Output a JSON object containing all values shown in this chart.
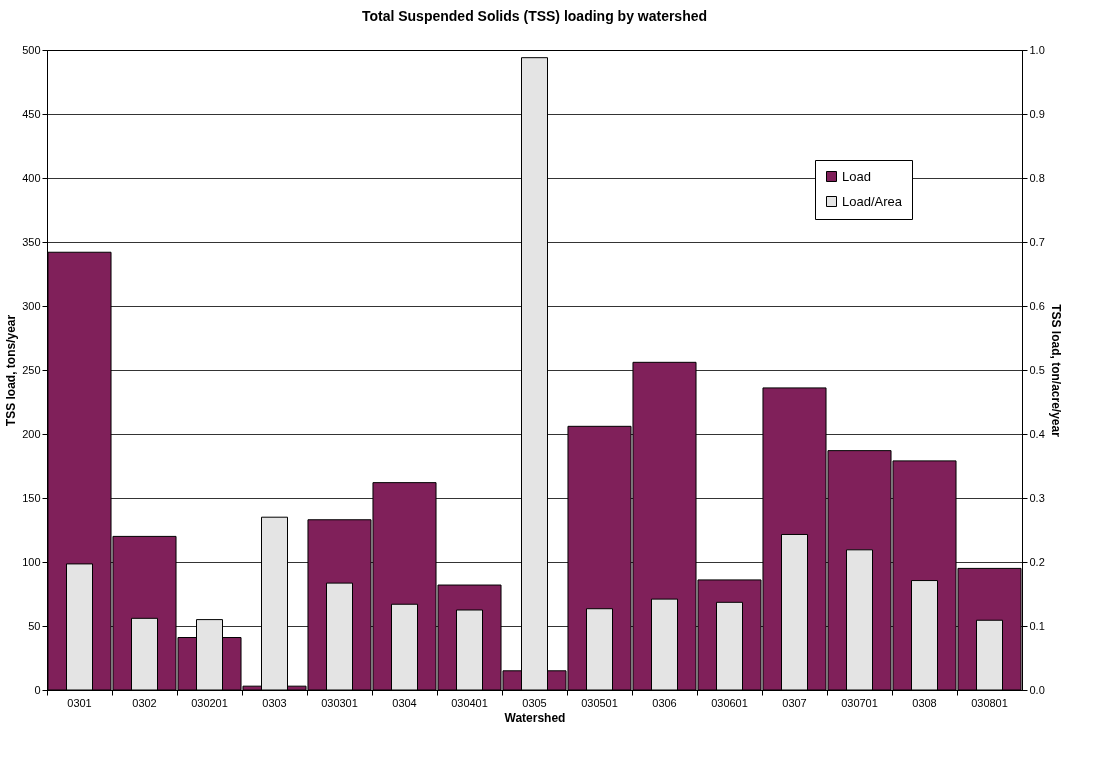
{
  "chart_data": {
    "type": "bar",
    "title": "Total Suspended Solids (TSS) loading by watershed",
    "xlabel": "Watershed",
    "ylabel": "TSS load, tons/year",
    "y2label": "TSS load, ton/acre/year",
    "categories": [
      "0301",
      "0302",
      "030201",
      "0303",
      "030301",
      "0304",
      "030401",
      "0305",
      "030501",
      "0306",
      "030601",
      "0307",
      "030701",
      "0308",
      "030801"
    ],
    "series": [
      {
        "name": "Load",
        "color": "#80205a",
        "values": [
          342,
          120,
          41,
          3,
          133,
          162,
          82,
          15,
          206,
          256,
          86,
          236,
          187,
          179,
          95
        ]
      },
      {
        "name": "Load/Area",
        "color": "#e4e4e4",
        "axis": "y2",
        "values": [
          0.197,
          0.112,
          0.11,
          0.27,
          0.167,
          0.134,
          0.125,
          0.988,
          0.127,
          0.142,
          0.137,
          0.243,
          0.219,
          0.171,
          0.109
        ]
      }
    ],
    "ylim": [
      0,
      500
    ],
    "yticks": [
      0,
      50,
      100,
      150,
      200,
      250,
      300,
      350,
      400,
      450,
      500
    ],
    "y2lim": [
      0,
      1
    ],
    "y2ticks": [
      {
        "value": 0,
        "label": "0.0"
      },
      {
        "value": 0.1,
        "label": "0.1"
      },
      {
        "value": 0.2,
        "label": "0.2"
      },
      {
        "value": 0.3,
        "label": "0.3"
      },
      {
        "value": 0.4,
        "label": "0.4"
      },
      {
        "value": 0.5,
        "label": "0.5"
      },
      {
        "value": 0.6,
        "label": "0.6"
      },
      {
        "value": 0.7,
        "label": "0.7"
      },
      {
        "value": 0.8,
        "label": "0.8"
      },
      {
        "value": 0.9,
        "label": "0.9"
      },
      {
        "value": 1,
        "label": "1.0"
      }
    ],
    "grid": "y",
    "legend": "top right"
  }
}
